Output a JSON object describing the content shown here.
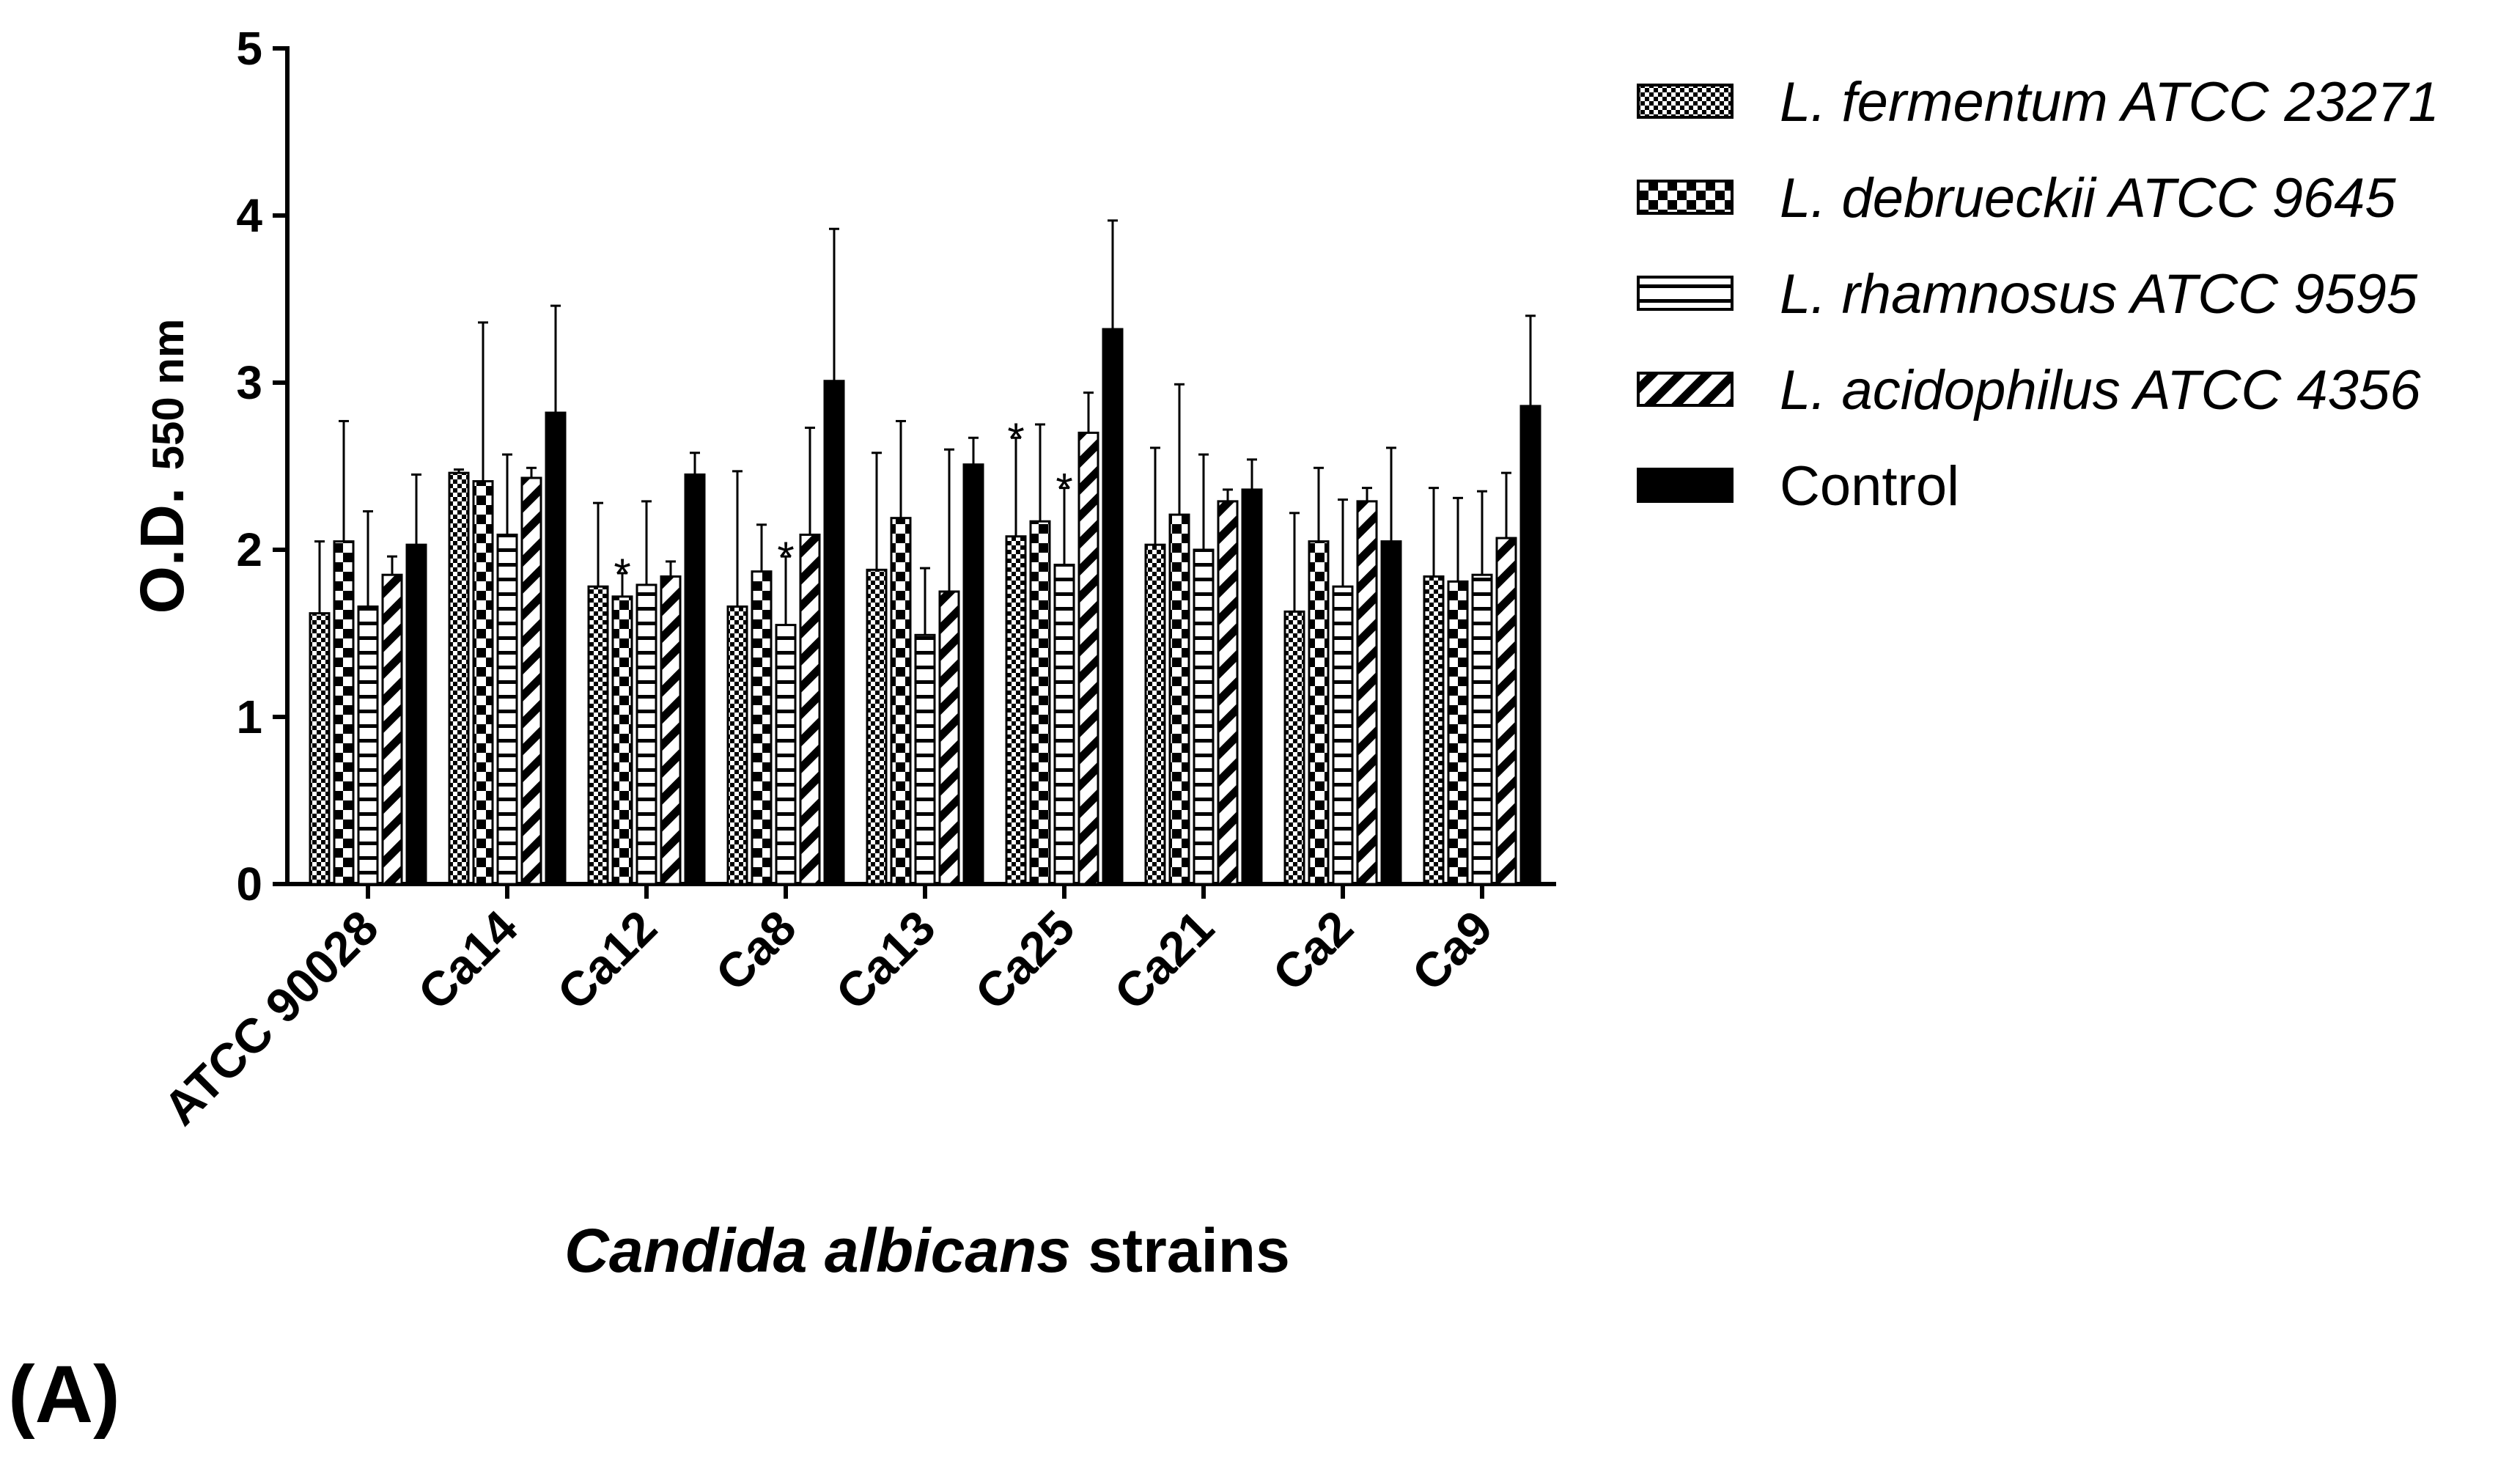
{
  "chart_data": {
    "type": "bar",
    "panel_label": "(A)",
    "ylabel": "O.D.",
    "ylabel_sub": "550 nm",
    "xlabel_italic": "Candida albicans",
    "xlabel_rest": "strains",
    "categories": [
      "ATCC 90028",
      "Ca14",
      "Ca12",
      "Ca8",
      "Ca13",
      "Ca25",
      "Ca21",
      "Ca2",
      "Ca9"
    ],
    "ylim": [
      0,
      5
    ],
    "yticks": [
      0,
      1,
      2,
      3,
      4,
      5
    ],
    "series": [
      {
        "name": "L. fermentum ATCC 23271",
        "color": "#000000",
        "pattern": "fine-check",
        "values": [
          1.62,
          2.46,
          1.78,
          1.66,
          1.88,
          2.08,
          2.03,
          1.63,
          1.84
        ],
        "errors": [
          0.43,
          0.02,
          0.5,
          0.81,
          0.7,
          0.59,
          0.58,
          0.59,
          0.53
        ],
        "markers": [
          null,
          null,
          null,
          null,
          null,
          "*",
          null,
          null,
          null
        ]
      },
      {
        "name": "L. debrueckii ATCC 9645",
        "color": "#000000",
        "pattern": "check",
        "values": [
          2.05,
          2.41,
          1.72,
          1.87,
          2.19,
          2.17,
          2.21,
          2.05,
          1.81
        ],
        "errors": [
          0.72,
          0.95,
          0.14,
          0.28,
          0.58,
          0.58,
          0.78,
          0.44,
          0.5
        ],
        "markers": [
          null,
          null,
          "*",
          null,
          null,
          null,
          null,
          null,
          null
        ]
      },
      {
        "name": "L. rhamnosus ATCC 9595",
        "color": "#000000",
        "pattern": "horizontal",
        "values": [
          1.66,
          2.09,
          1.79,
          1.55,
          1.49,
          1.91,
          2.0,
          1.78,
          1.85
        ],
        "errors": [
          0.57,
          0.48,
          0.5,
          0.41,
          0.4,
          0.46,
          0.57,
          0.52,
          0.5
        ],
        "markers": [
          null,
          null,
          null,
          "*",
          null,
          "*",
          null,
          null,
          null
        ]
      },
      {
        "name": "L. acidophilus ATCC 4356",
        "color": "#000000",
        "pattern": "diagonal",
        "values": [
          1.85,
          2.43,
          1.84,
          2.09,
          1.75,
          2.7,
          2.29,
          2.29,
          2.07
        ],
        "errors": [
          0.11,
          0.06,
          0.09,
          0.64,
          0.85,
          0.24,
          0.07,
          0.08,
          0.39
        ]
      },
      {
        "name": "Control",
        "color": "#000000",
        "pattern": "solid",
        "values": [
          2.03,
          2.82,
          2.45,
          3.01,
          2.51,
          3.32,
          2.36,
          2.05,
          2.86
        ],
        "errors": [
          0.42,
          0.64,
          0.13,
          0.91,
          0.16,
          0.65,
          0.18,
          0.56,
          0.54
        ]
      }
    ]
  }
}
